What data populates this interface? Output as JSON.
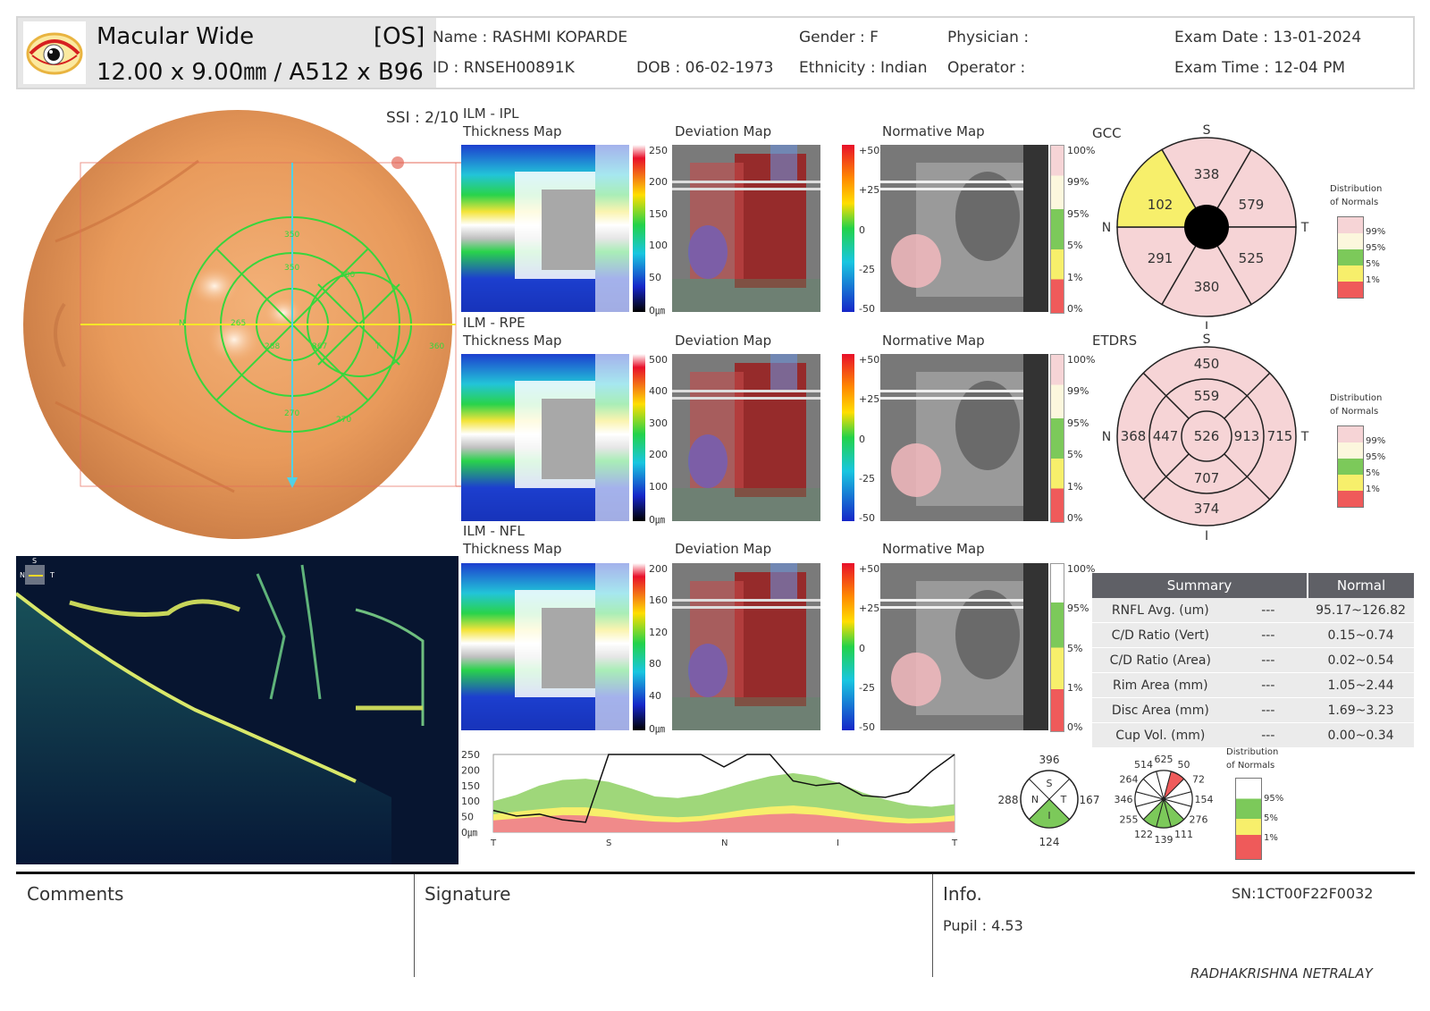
{
  "header": {
    "scan_type": "Macular Wide",
    "eye": "[OS]",
    "scan_size": "12.00 x 9.00㎜ / A512 x B96",
    "name": "Name : RASHMI KOPARDE",
    "id": "ID : RNSEH00891K",
    "dob": "DOB : 06-02-1973",
    "gender": "Gender : F",
    "ethnicity": "Ethnicity : Indian",
    "physician": "Physician :",
    "operator": "Operator :",
    "exam_date": "Exam Date : 13-01-2024",
    "exam_time": "Exam Time : 12-04 PM"
  },
  "ssi": "SSI : 2/10",
  "fundus_overlay": {
    "sector_values": [
      "350",
      "350",
      "300",
      "265",
      "288",
      "367",
      "360",
      "270",
      "270"
    ],
    "letters": [
      "N",
      "T"
    ]
  },
  "rows": [
    {
      "layer": "ILM - IPL",
      "thickness_label": "Thickness Map",
      "deviation_label": "Deviation Map",
      "normative_label": "Normative Map",
      "thickness_scale": [
        "250",
        "200",
        "150",
        "100",
        "50",
        "0㎛"
      ],
      "deviation_scale": [
        "+50",
        "+25",
        "0",
        "-25",
        "-50"
      ],
      "normative_scale": [
        "100%",
        "99%",
        "95%",
        "5%",
        "1%",
        "0%"
      ]
    },
    {
      "layer": "ILM - RPE",
      "thickness_label": "Thickness Map",
      "deviation_label": "Deviation Map",
      "normative_label": "Normative Map",
      "thickness_scale": [
        "500",
        "400",
        "300",
        "200",
        "100",
        "0㎛"
      ],
      "deviation_scale": [
        "+50",
        "+25",
        "0",
        "-25",
        "-50"
      ],
      "normative_scale": [
        "100%",
        "99%",
        "95%",
        "5%",
        "1%",
        "0%"
      ]
    },
    {
      "layer": "ILM - NFL",
      "thickness_label": "Thickness Map",
      "deviation_label": "Deviation Map",
      "normative_label": "Normative Map",
      "thickness_scale": [
        "200",
        "160",
        "120",
        "80",
        "40",
        "0㎛"
      ],
      "deviation_scale": [
        "+50",
        "+25",
        "0",
        "-25",
        "-50"
      ],
      "normative_scale": [
        "100%",
        "95%",
        "5%",
        "1%",
        "0%"
      ]
    }
  ],
  "gcc": {
    "title": "GCC",
    "orient": {
      "S": "S",
      "N": "N",
      "T": "T",
      "I": "I"
    },
    "values": {
      "superior": "338",
      "sup_temporal": "579",
      "inf_temporal": "525",
      "inferior": "380",
      "inf_nasal": "291",
      "sup_nasal": "102"
    }
  },
  "etdrs": {
    "title": "ETDRS",
    "orient": {
      "S": "S",
      "N": "N",
      "T": "T",
      "I": "I"
    },
    "values": {
      "center": "526",
      "inner_s": "559",
      "inner_t": "913",
      "inner_i": "707",
      "inner_n": "447",
      "outer_s": "450",
      "outer_t": "715",
      "outer_i": "374",
      "outer_n": "368"
    }
  },
  "legend": {
    "title_line1": "Distribution",
    "title_line2": "of Normals",
    "items": [
      "99%",
      "95%",
      "5%",
      "1%"
    ],
    "colors": [
      "#f6dcdc",
      "#fcf7dd",
      "#7cc95a",
      "#f7ef6b",
      "#ef5a5a"
    ]
  },
  "legend_small": {
    "title_line1": "Distribution",
    "title_line2": "of Normals",
    "items": [
      "95%",
      "5%",
      "1%"
    ]
  },
  "summary": {
    "header_left": "Summary",
    "header_right": "Normal",
    "rows": [
      {
        "label": "RNFL Avg. (um)",
        "value": "---",
        "normal": "95.17~126.82"
      },
      {
        "label": "C/D Ratio (Vert)",
        "value": "---",
        "normal": "0.15~0.74"
      },
      {
        "label": "C/D Ratio (Area)",
        "value": "---",
        "normal": "0.02~0.54"
      },
      {
        "label": "Rim Area (mm)",
        "value": "---",
        "normal": "1.05~2.44"
      },
      {
        "label": "Disc Area (mm)",
        "value": "---",
        "normal": "1.69~3.23"
      },
      {
        "label": "Cup Vol. (mm)",
        "value": "---",
        "normal": "0.00~0.34"
      }
    ]
  },
  "chart_data": {
    "type": "line",
    "y_ticks": [
      "250",
      "200",
      "150",
      "100",
      "50",
      "0㎛"
    ],
    "x_ticks": [
      "T",
      "S",
      "N",
      "I",
      "T"
    ],
    "ylim": [
      0,
      250
    ],
    "x": [
      0,
      5,
      10,
      15,
      20,
      25,
      30,
      35,
      40,
      45,
      50,
      55,
      60,
      65,
      70,
      75,
      80,
      85,
      90,
      95,
      100
    ],
    "series": [
      {
        "values": [
          70,
          52,
          58,
          40,
          32,
          250,
          250,
          250,
          250,
          250,
          210,
          250,
          250,
          165,
          150,
          158,
          118,
          112,
          130,
          196,
          250
        ]
      }
    ],
    "bands": {
      "red_top": [
        38,
        44,
        50,
        55,
        54,
        48,
        40,
        34,
        32,
        36,
        44,
        52,
        58,
        60,
        56,
        48,
        40,
        32,
        28,
        30,
        36
      ],
      "yellow_top": [
        58,
        66,
        74,
        80,
        80,
        72,
        60,
        52,
        48,
        52,
        62,
        74,
        82,
        86,
        80,
        70,
        58,
        50,
        44,
        46,
        54
      ],
      "green_top": [
        100,
        120,
        150,
        168,
        172,
        162,
        140,
        115,
        110,
        120,
        140,
        162,
        180,
        190,
        180,
        158,
        128,
        105,
        88,
        82,
        90
      ]
    }
  },
  "quadrant": {
    "values": {
      "S": "396",
      "T": "167",
      "I": "124",
      "N": "288"
    },
    "letters": {
      "S": "S",
      "T": "T",
      "I": "I",
      "N": "N"
    }
  },
  "clock": {
    "values": [
      "625",
      "50",
      "72",
      "154",
      "276",
      "111",
      "139",
      "122",
      "255",
      "346",
      "264",
      "514"
    ]
  },
  "footer": {
    "comments": "Comments",
    "signature": "Signature",
    "info": "Info.",
    "sn": "SN:1CT00F22F0032",
    "pupil": "Pupil : 4.53",
    "clinic": "RADHAKRISHNA NETRALAY"
  }
}
